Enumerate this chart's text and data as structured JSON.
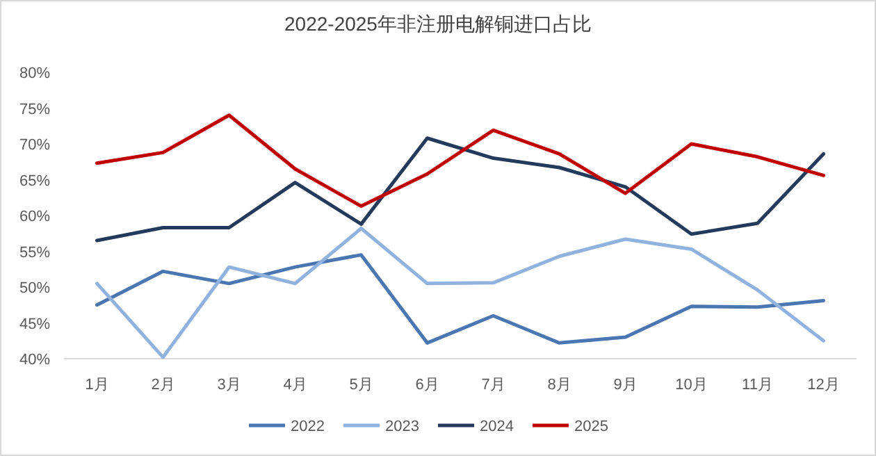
{
  "chart_data": {
    "type": "line",
    "title": "2022-2025年非注册电解铜进口占比",
    "categories": [
      "1月",
      "2月",
      "3月",
      "4月",
      "5月",
      "6月",
      "7月",
      "8月",
      "9月",
      "10月",
      "11月",
      "12月"
    ],
    "series": [
      {
        "name": "2022",
        "color": "#4a76b2",
        "values": [
          47.5,
          52.2,
          50.5,
          52.8,
          54.5,
          42.2,
          46,
          42.2,
          43,
          47.3,
          47.2,
          48.1
        ]
      },
      {
        "name": "2023",
        "color": "#8fb2de",
        "values": [
          50.5,
          40.2,
          52.8,
          50.5,
          58.2,
          50.5,
          50.6,
          54.3,
          56.7,
          55.3,
          49.6,
          42.5
        ]
      },
      {
        "name": "2024",
        "color": "#243a5c",
        "values": [
          56.5,
          58.3,
          58.3,
          64.6,
          58.8,
          70.8,
          68,
          66.7,
          64,
          57.4,
          58.9,
          68.6
        ]
      },
      {
        "name": "2025",
        "color": "#c00000",
        "values": [
          67.3,
          68.8,
          74,
          66.5,
          61.3,
          65.8,
          71.9,
          68.6,
          63.1,
          70,
          68.2,
          65.6
        ]
      }
    ],
    "ylim": [
      40,
      80
    ],
    "yticks": [
      {
        "value": 40,
        "label": "40%"
      },
      {
        "value": 45,
        "label": "45%"
      },
      {
        "value": 50,
        "label": "50%"
      },
      {
        "value": 55,
        "label": "55%"
      },
      {
        "value": 60,
        "label": "60%"
      },
      {
        "value": 65,
        "label": "65%"
      },
      {
        "value": 70,
        "label": "70%"
      },
      {
        "value": 75,
        "label": "75%"
      },
      {
        "value": 80,
        "label": "80%"
      }
    ],
    "grid": false,
    "legend": "bottom",
    "marker": "none",
    "line_style": "solid"
  }
}
